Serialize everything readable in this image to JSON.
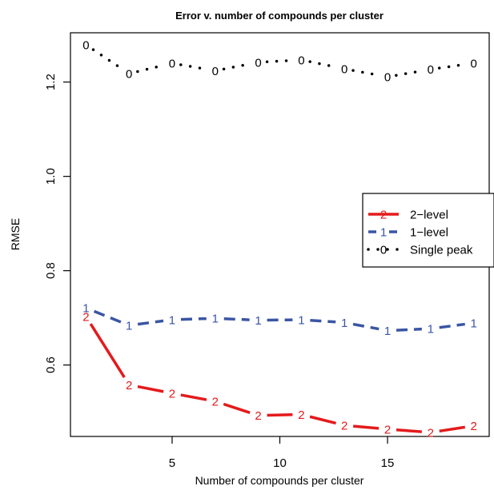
{
  "chart_data": {
    "type": "line",
    "title": "Error v. number of compounds per cluster",
    "xlabel": "Number of compounds per cluster",
    "ylabel": "RMSE",
    "xlim": [
      0.28,
      19.72
    ],
    "ylim": [
      0.4485,
      1.3045
    ],
    "x_ticks": [
      5,
      10,
      15
    ],
    "x_tick_labels": [
      "5",
      "10",
      "15"
    ],
    "y_ticks": [
      0.6,
      0.8,
      1.0,
      1.2
    ],
    "y_tick_labels": [
      "0.6",
      "0.8",
      "1.0",
      "1.2"
    ],
    "grid": false,
    "legend_position": "right",
    "legend": [
      {
        "label": "2−level",
        "symbol": "2",
        "color": "#e41a1c",
        "style": "solid"
      },
      {
        "label": "1−level",
        "symbol": "1",
        "color": "#3a55a4",
        "style": "dashed"
      },
      {
        "label": "Single peak",
        "symbol": "0",
        "color": "#000000",
        "style": "dotted"
      }
    ],
    "x": [
      1,
      3,
      5,
      7,
      9,
      11,
      13,
      15,
      17,
      19
    ],
    "series": [
      {
        "name": "Single peak",
        "symbol": "0",
        "color": "#000000",
        "style": "dotted",
        "values": [
          1.279,
          1.218,
          1.24,
          1.224,
          1.242,
          1.247,
          1.228,
          1.211,
          1.227,
          1.24
        ]
      },
      {
        "name": "1-level",
        "symbol": "1",
        "color": "#3a55a4",
        "style": "dashed",
        "values": [
          0.721,
          0.684,
          0.696,
          0.699,
          0.695,
          0.696,
          0.69,
          0.673,
          0.677,
          0.689
        ]
      },
      {
        "name": "2-level",
        "symbol": "2",
        "color": "#e41a1c",
        "style": "solid",
        "values": [
          0.703,
          0.558,
          0.54,
          0.523,
          0.493,
          0.495,
          0.472,
          0.464,
          0.457,
          0.471
        ]
      }
    ]
  }
}
